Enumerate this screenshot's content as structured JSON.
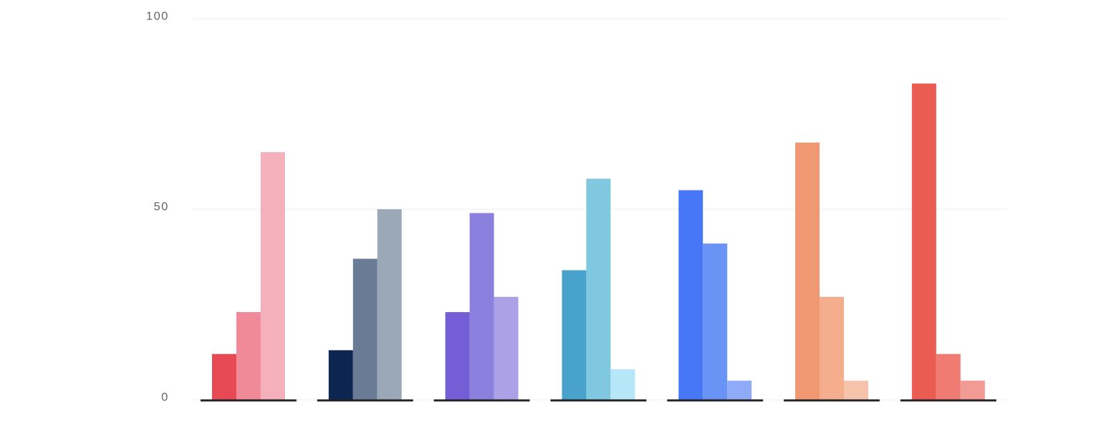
{
  "chart_data": {
    "type": "bar",
    "categories": [
      null,
      null,
      null,
      null,
      null,
      null,
      null
    ],
    "series": [
      {
        "colors": [
          "#e84a55",
          "#0c2551",
          "#745ed6",
          "#48a2cb",
          "#4777f6",
          "#f09872",
          "#ea5c52"
        ],
        "values": [
          12,
          13,
          23,
          34,
          55,
          67.5,
          83
        ]
      },
      {
        "colors": [
          "#f08a98",
          "#6a7b95",
          "#8c80de",
          "#7fc8df",
          "#6a93f6",
          "#f4ae8d",
          "#ef7b73"
        ],
        "values": [
          23,
          37,
          49,
          58,
          41,
          27,
          12
        ]
      },
      {
        "colors": [
          "#f5b1bb",
          "#9aa8b8",
          "#aca1e6",
          "#b6e7f8",
          "#8fabf8",
          "#f6c2a9",
          "#f29b95"
        ],
        "values": [
          65,
          50,
          27,
          8,
          5,
          5,
          5
        ]
      }
    ],
    "ylim": [
      0,
      100
    ],
    "yticks": [
      0,
      50,
      100
    ],
    "grid": true
  }
}
